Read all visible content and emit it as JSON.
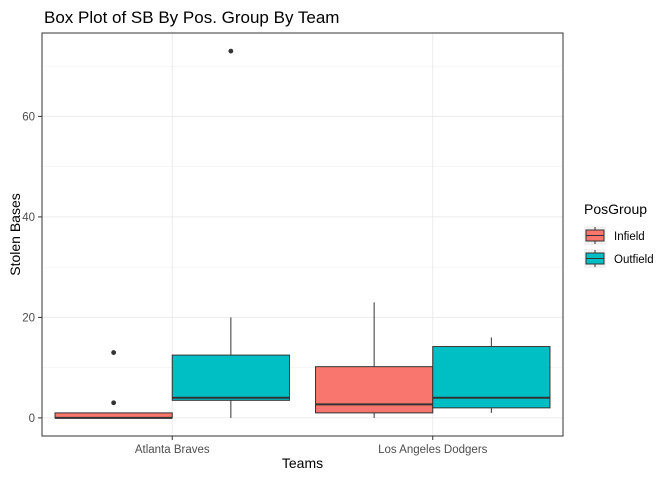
{
  "chart_data": {
    "type": "box",
    "title": "Box Plot of SB By Pos. Group By Team",
    "xlabel": "Teams",
    "ylabel": "Stolen Bases",
    "categories": [
      "Atlanta Braves",
      "Los Angeles Dodgers"
    ],
    "y_ticks": [
      0,
      20,
      40,
      60
    ],
    "ylim": [
      -3.6,
      76.6
    ],
    "grid": true,
    "legend": {
      "title": "PosGroup",
      "placement": "right",
      "entries": [
        {
          "label": "Infield",
          "color": "#F8766D"
        },
        {
          "label": "Outfield",
          "color": "#00BFC4"
        }
      ]
    },
    "series": [
      {
        "name": "Infield",
        "color": "#F8766D",
        "boxes": [
          {
            "category": "Atlanta Braves",
            "whisker_low": 0,
            "q1": 0,
            "median": 0,
            "q3": 1,
            "whisker_high": 1,
            "outliers": [
              3,
              13
            ]
          },
          {
            "category": "Los Angeles Dodgers",
            "whisker_low": 0,
            "q1": 1,
            "median": 2.7,
            "q3": 10.2,
            "whisker_high": 23,
            "outliers": []
          }
        ]
      },
      {
        "name": "Outfield",
        "color": "#00BFC4",
        "boxes": [
          {
            "category": "Atlanta Braves",
            "whisker_low": 0,
            "q1": 3.5,
            "median": 4,
            "q3": 12.5,
            "whisker_high": 20,
            "outliers": [
              73
            ]
          },
          {
            "category": "Los Angeles Dodgers",
            "whisker_low": 1,
            "q1": 2,
            "median": 4,
            "q3": 14.2,
            "whisker_high": 16,
            "outliers": []
          }
        ]
      }
    ]
  }
}
